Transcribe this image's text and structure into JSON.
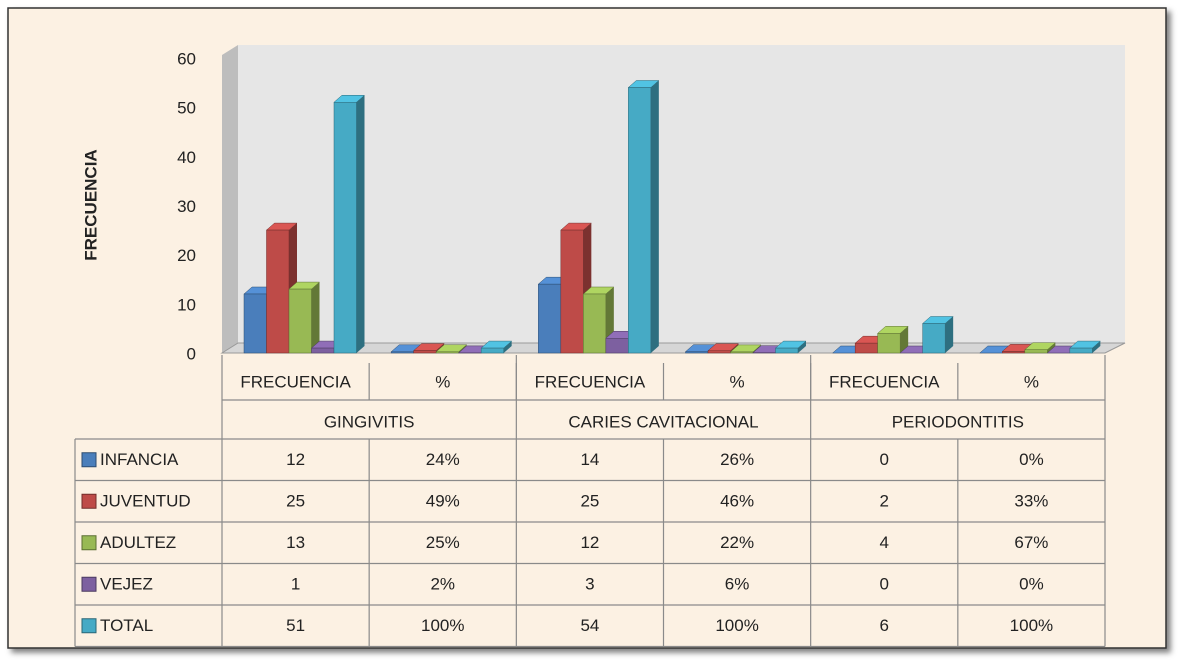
{
  "chart_data": {
    "type": "bar3d",
    "y_label": "FRECUENCIA",
    "categories": [
      "FRECUENCIA",
      "%",
      "FRECUENCIA",
      "%",
      "FRECUENCIA",
      "%"
    ],
    "category_groups": [
      "GINGIVITIS",
      "CARIES CAVITACIONAL",
      "PERIODONTITIS"
    ],
    "series": [
      {
        "name": "INFANCIA",
        "color": "#4a7ebb",
        "values": [
          12,
          0.24,
          14,
          0.26,
          0,
          0
        ],
        "value_labels": [
          "12",
          "24%",
          "14",
          "26%",
          "0",
          "0%"
        ]
      },
      {
        "name": "JUVENTUD",
        "color": "#be4b48",
        "values": [
          25,
          0.49,
          25,
          0.46,
          2,
          0.33
        ],
        "value_labels": [
          "25",
          "49%",
          "25",
          "46%",
          "2",
          "33%"
        ]
      },
      {
        "name": "ADULTEZ",
        "color": "#98b954",
        "values": [
          13,
          0.25,
          12,
          0.22,
          4,
          0.67
        ],
        "value_labels": [
          "13",
          "25%",
          "12",
          "22%",
          "4",
          "67%"
        ]
      },
      {
        "name": "VEJEZ",
        "color": "#7d60a0",
        "values": [
          1,
          0.02,
          3,
          0.06,
          0,
          0
        ],
        "value_labels": [
          "1",
          "2%",
          "3",
          "6%",
          "0",
          "0%"
        ]
      },
      {
        "name": "TOTAL",
        "color": "#46aac5",
        "values": [
          51,
          1,
          54,
          1,
          6,
          1
        ],
        "value_labels": [
          "51",
          "100%",
          "54",
          "100%",
          "6",
          "100%"
        ]
      }
    ],
    "ylim": [
      0,
      60
    ],
    "yticks": [
      0,
      10,
      20,
      30,
      40,
      50,
      60
    ]
  }
}
